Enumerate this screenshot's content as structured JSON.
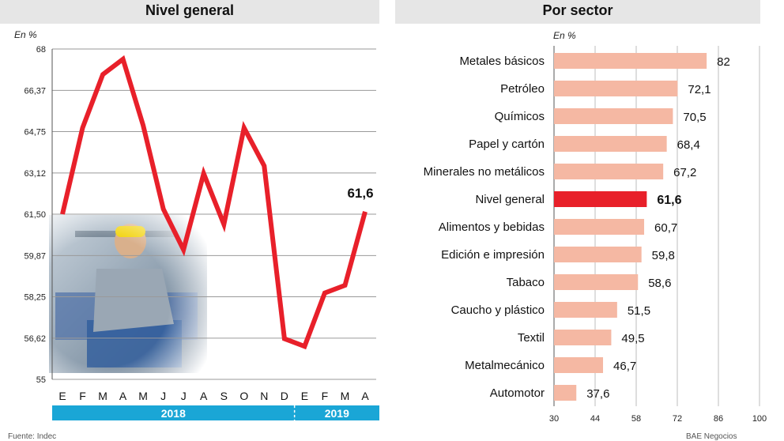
{
  "chart_data": [
    {
      "type": "line",
      "title": "Nivel general",
      "unit_label": "En %",
      "ylim": [
        55,
        68
      ],
      "yticks": [
        "68",
        "66,37",
        "64,75",
        "63,12",
        "61,50",
        "59,87",
        "58,25",
        "56,62",
        "55"
      ],
      "ytick_values": [
        68,
        66.37,
        64.75,
        63.12,
        61.5,
        59.87,
        58.25,
        56.62,
        55
      ],
      "categories": [
        "E",
        "F",
        "M",
        "A",
        "M",
        "J",
        "J",
        "A",
        "S",
        "O",
        "N",
        "D",
        "E",
        "F",
        "M",
        "A"
      ],
      "series": [
        {
          "values": [
            61.5,
            64.9,
            67.0,
            67.6,
            65.0,
            61.7,
            60.1,
            63.1,
            61.1,
            64.9,
            63.4,
            56.6,
            56.3,
            58.4,
            58.7,
            61.6
          ]
        }
      ],
      "last_value_label": "61,6",
      "years": [
        "2018",
        "2019"
      ],
      "color": "#e8202a",
      "year_band_color": "#1aa6d6"
    },
    {
      "type": "bar",
      "orientation": "horizontal",
      "title": "Por sector",
      "unit_label": "En %",
      "xlim": [
        30,
        100
      ],
      "xticks": [
        "30",
        "44",
        "58",
        "72",
        "86",
        "100"
      ],
      "xtick_values": [
        30,
        44,
        58,
        72,
        86,
        100
      ],
      "categories": [
        "Metales básicos",
        "Petróleo",
        "Químicos",
        "Papel y cartón",
        "Minerales no metálicos",
        "Nivel general",
        "Alimentos y bebidas",
        "Edición e impresión",
        "Tabaco",
        "Caucho y plástico",
        "Textil",
        "Metalmecánico",
        "Automotor"
      ],
      "values": [
        82,
        72.1,
        70.5,
        68.4,
        67.2,
        61.6,
        60.7,
        59.8,
        58.6,
        51.5,
        49.5,
        46.7,
        37.6
      ],
      "value_labels": [
        "82",
        "72,1",
        "70,5",
        "68,4",
        "67,2",
        "61,6",
        "60,7",
        "59,8",
        "58,6",
        "51,5",
        "49,5",
        "46,7",
        "37,6"
      ],
      "highlight": "Nivel general",
      "bar_color": "#f5b8a3",
      "highlight_color": "#e8202a"
    }
  ],
  "footer": {
    "source": "Fuente: Indec",
    "credit": "BAE Negocios"
  }
}
